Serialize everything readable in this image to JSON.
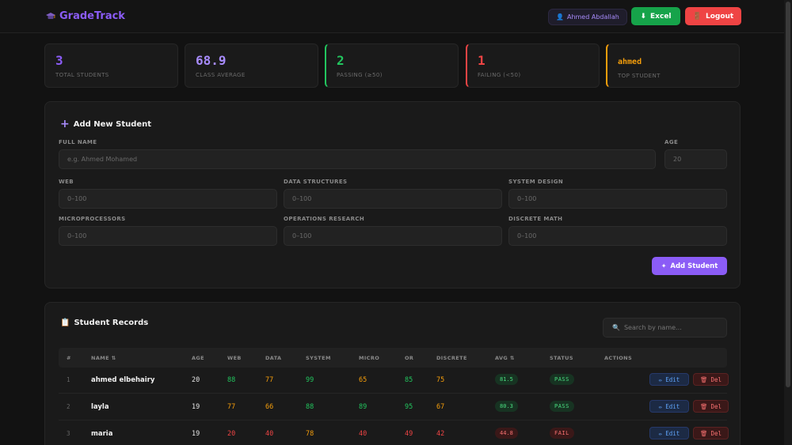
{
  "header": {
    "brand": "GradeTrack",
    "user": "Ahmed Abdallah",
    "excel_label": "Excel",
    "logout_label": "Logout"
  },
  "stats": [
    {
      "value": "3",
      "label": "TOTAL STUDENTS",
      "color": "#8b5cf6"
    },
    {
      "value": "68.9",
      "label": "CLASS AVERAGE",
      "color": "#a78bfa"
    },
    {
      "value": "2",
      "label": "PASSING (≥50)",
      "color": "#22c55e"
    },
    {
      "value": "1",
      "label": "FAILING (<50)",
      "color": "#ef4444"
    },
    {
      "value": "ahmed",
      "label": "TOP STUDENT",
      "color": "#f59e0b"
    }
  ],
  "form": {
    "title": "Add New Student",
    "full_name_label": "FULL NAME",
    "full_name_placeholder": "e.g. Ahmed Mohamed",
    "age_label": "AGE",
    "age_placeholder": "20",
    "web_label": "WEB",
    "ds_label": "DATA STRUCTURES",
    "sd_label": "SYSTEM DESIGN",
    "micro_label": "MICROPROCESSORS",
    "or_label": "OPERATIONS RESEARCH",
    "dm_label": "DISCRETE MATH",
    "score_placeholder": "0–100",
    "add_button": "Add Student"
  },
  "records": {
    "title": "Student Records",
    "search_placeholder": "Search by name...",
    "columns": [
      "#",
      "NAME ⇅",
      "AGE",
      "WEB",
      "DATA",
      "SYSTEM",
      "MICRO",
      "OR",
      "DISCRETE",
      "AVG ⇅",
      "STATUS",
      "ACTIONS"
    ],
    "edit_label": "Edit",
    "del_label": "Del",
    "rows": [
      {
        "idx": "1",
        "name": "ahmed elbehairy",
        "age": "20",
        "web": "88",
        "data": "77",
        "system": "99",
        "micro": "65",
        "or": "85",
        "discrete": "75",
        "avg": "81.5",
        "status": "PASS"
      },
      {
        "idx": "2",
        "name": "layla",
        "age": "19",
        "web": "77",
        "data": "66",
        "system": "88",
        "micro": "89",
        "or": "95",
        "discrete": "67",
        "avg": "80.3",
        "status": "PASS"
      },
      {
        "idx": "3",
        "name": "maria",
        "age": "19",
        "web": "20",
        "data": "40",
        "system": "78",
        "micro": "40",
        "or": "49",
        "discrete": "42",
        "avg": "44.8",
        "status": "FAIL"
      }
    ]
  }
}
